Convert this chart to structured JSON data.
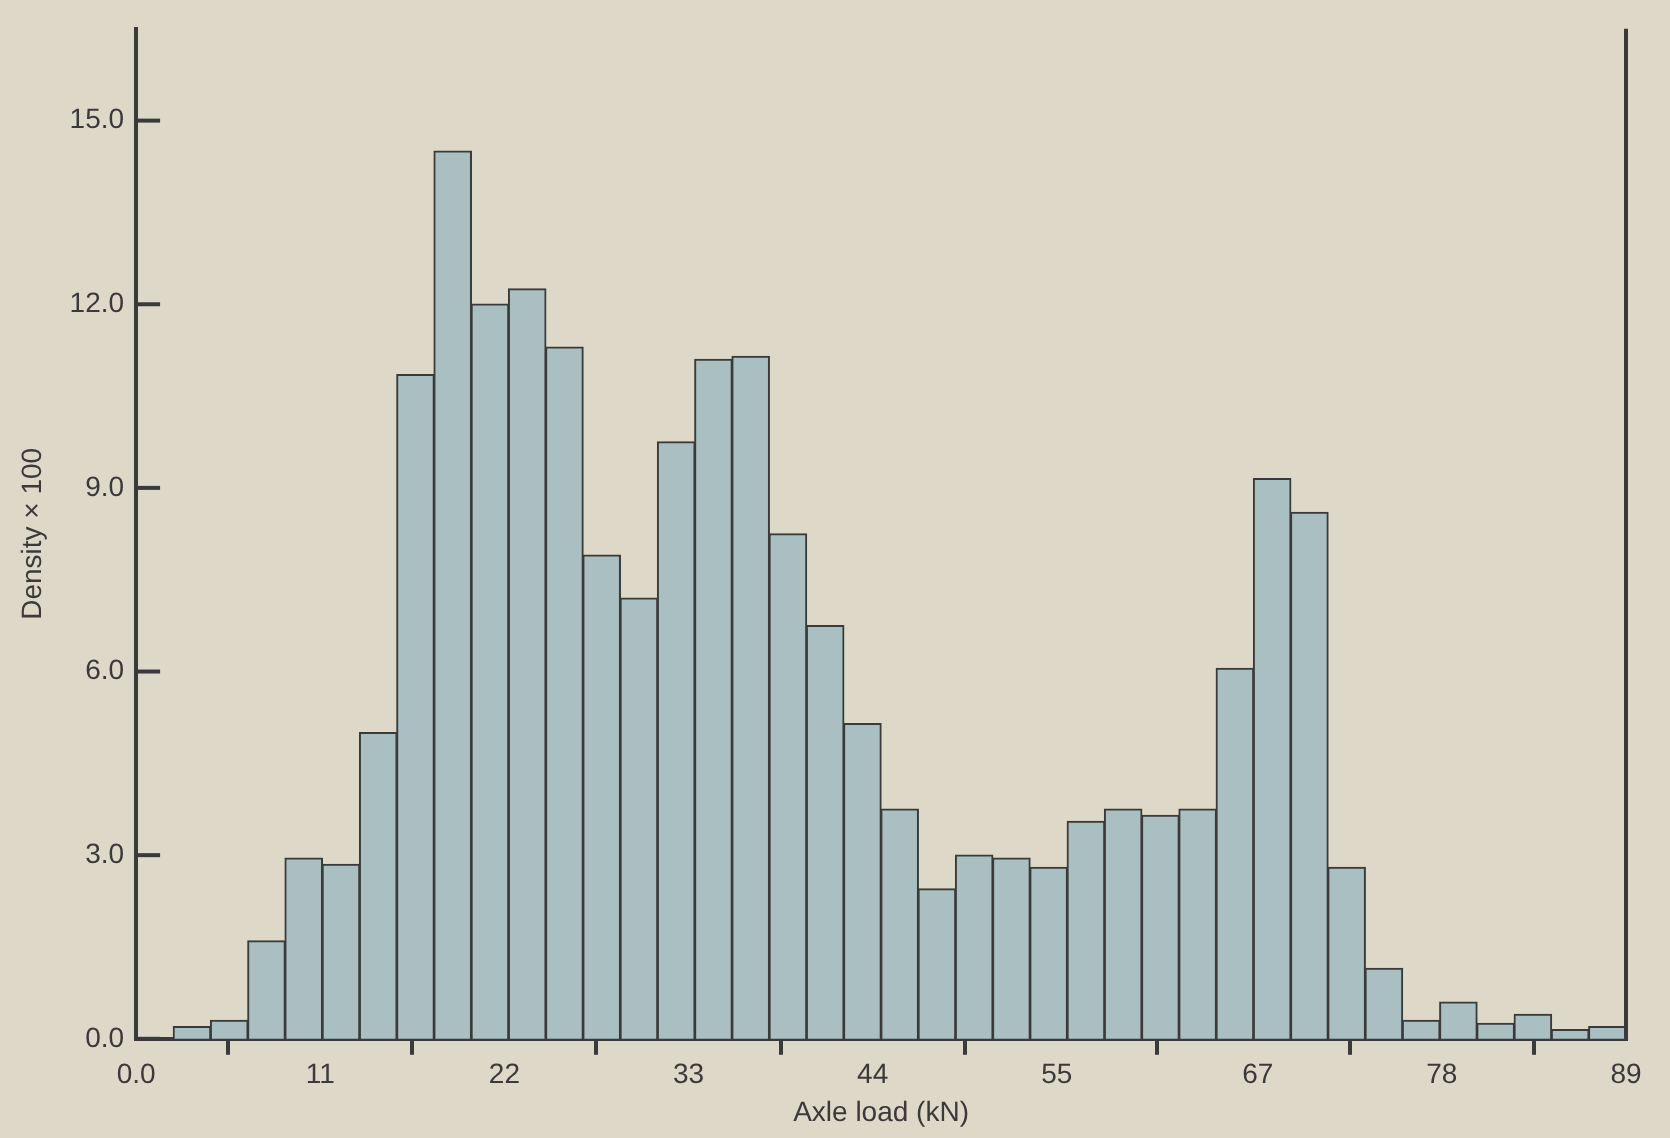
{
  "chart_data": {
    "type": "histogram",
    "xlabel": "Axle load (kN)",
    "ylabel": "Density × 100",
    "color": "#a9bfc2",
    "bins": [
      2.225,
      4.45,
      6.675,
      8.9,
      11.125,
      13.35,
      15.575,
      17.8,
      20.025,
      22.25,
      24.475,
      26.7,
      28.925,
      31.15,
      33.375,
      35.6,
      37.825,
      40.05,
      42.275,
      44.5,
      46.725,
      48.95,
      51.175,
      53.4,
      55.625,
      57.85,
      60.075,
      62.3,
      64.525,
      66.75,
      68.975,
      71.2,
      73.425,
      75.65,
      77.875,
      80.1,
      82.325,
      84.55,
      86.775,
      89
    ],
    "values": [
      0.2,
      0.3,
      1.6,
      2.95,
      2.85,
      5.0,
      10.85,
      14.5,
      12.0,
      12.25,
      11.3,
      7.9,
      7.2,
      9.75,
      11.1,
      11.15,
      8.25,
      6.75,
      5.15,
      3.75,
      2.45,
      3.0,
      2.95,
      2.8,
      3.55,
      3.75,
      3.65,
      3.75,
      6.05,
      9.15,
      8.6,
      2.8,
      1.15,
      0.3,
      0.6,
      0.25,
      0.4,
      0.15,
      0.2
    ],
    "xlim": [
      0,
      89
    ],
    "xticks": [
      {
        "value": 0,
        "label": "0.0"
      },
      11,
      22,
      33,
      44,
      55,
      67,
      78,
      89
    ],
    "ylim": [
      0,
      16.5
    ],
    "yticks": [
      {
        "value": 0,
        "label": "0.0"
      },
      {
        "value": 3,
        "label": "3.0"
      },
      {
        "value": 6,
        "label": "6.0"
      },
      {
        "value": 9,
        "label": "9.0"
      },
      {
        "value": 12,
        "label": "12.0"
      },
      {
        "value": 15,
        "label": "15.0"
      }
    ],
    "grid": false,
    "legend": false
  }
}
